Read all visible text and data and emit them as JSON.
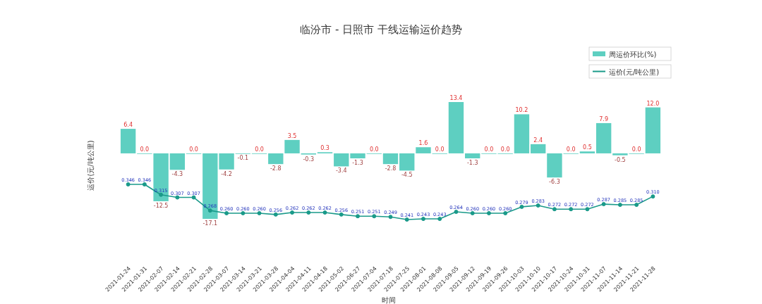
{
  "chart_data": {
    "type": "bar",
    "title": "临汾市 - 日照市 干线运输运价趋势",
    "xlabel": "时间",
    "ylabel": "运价(元/吨公里)",
    "categories": [
      "2021-01-24",
      "2021-01-31",
      "2021-02-07",
      "2021-02-14",
      "2021-02-21",
      "2021-02-28",
      "2021-03-07",
      "2021-03-14",
      "2021-03-21",
      "2021-03-28",
      "2021-04-04",
      "2021-04-11",
      "2021-04-18",
      "2021-05-02",
      "2021-06-27",
      "2021-07-04",
      "2021-07-18",
      "2021-07-25",
      "2021-08-01",
      "2021-08-08",
      "2021-09-05",
      "2021-09-12",
      "2021-09-19",
      "2021-09-26",
      "2021-10-03",
      "2021-10-10",
      "2021-10-17",
      "2021-10-24",
      "2021-10-31",
      "2021-11-07",
      "2021-11-14",
      "2021-11-21",
      "2021-11-28"
    ],
    "series": [
      {
        "name": "周运价环比(%)",
        "color": "#5ecfc1",
        "values": [
          6.4,
          0.0,
          -12.5,
          -4.3,
          0.0,
          -17.1,
          -4.2,
          -0.1,
          0.0,
          -2.8,
          3.5,
          -0.3,
          0.3,
          -3.4,
          -1.3,
          0.0,
          -2.8,
          -4.5,
          1.6,
          0.0,
          13.4,
          -1.3,
          0.0,
          0.0,
          10.2,
          2.4,
          -6.3,
          0.0,
          0.5,
          7.9,
          -0.5,
          0.0,
          12.0
        ],
        "value_labels": [
          "6.4",
          "0.0",
          "-12.5",
          "-4.3",
          "0.0",
          "-17.1",
          "-4.2",
          "-0.1",
          "0.0",
          "-2.8",
          "3.5",
          "-0.3",
          "0.3",
          "-3.4",
          "-1.3",
          "0.0",
          "-2.8",
          "-4.5",
          "1.6",
          "0.0",
          "13.4",
          "-1.3",
          "0.0",
          "0.0",
          "10.2",
          "2.4",
          "-6.3",
          "0.0",
          "0.5",
          "7.9",
          "-0.5",
          "0.0",
          "12.0"
        ]
      },
      {
        "name": "运价(元/吨公里)",
        "type": "line",
        "axis": "y2",
        "color": "#1a9a8a",
        "values": [
          0.346,
          0.346,
          0.315,
          0.307,
          0.307,
          0.268,
          0.26,
          0.26,
          0.26,
          0.256,
          0.262,
          0.262,
          0.262,
          0.256,
          0.251,
          0.251,
          0.249,
          0.241,
          0.243,
          0.243,
          0.264,
          0.26,
          0.26,
          0.26,
          0.279,
          0.283,
          0.272,
          0.272,
          0.272,
          0.287,
          0.285,
          0.285,
          0.31
        ],
        "value_labels": [
          "0.346",
          "0.346",
          "0.315",
          "0.307",
          "0.307",
          "0.268",
          "0.260",
          "0.260",
          "0.260",
          "0.256",
          "0.262",
          "0.262",
          "0.262",
          "0.256",
          "0.251",
          "0.251",
          "0.249",
          "0.241",
          "0.243",
          "0.243",
          "0.264",
          "0.260",
          "0.260",
          "0.260",
          "0.279",
          "0.283",
          "0.272",
          "0.272",
          "0.272",
          "0.287",
          "0.285",
          "0.285",
          "0.310"
        ]
      }
    ],
    "legend": "top right",
    "marker": "circle",
    "tick_labels": "x"
  }
}
